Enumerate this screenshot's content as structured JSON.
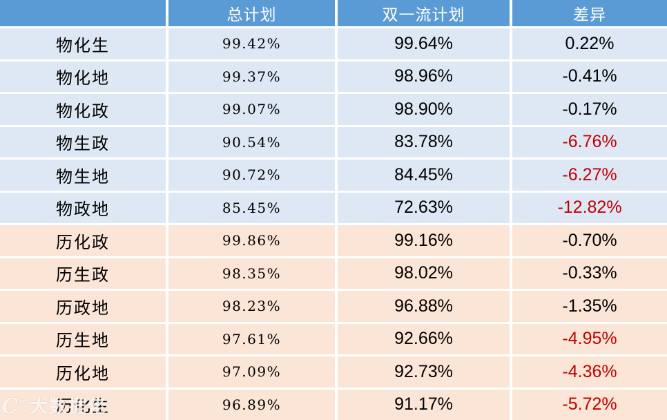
{
  "colors": {
    "header_bg": "#5B9BD5",
    "header_text": "#FFFFFF",
    "physics_row_bg": "#DEE8F5",
    "history_row_bg": "#FBE5D6",
    "normal_text": "#000000",
    "negative_highlight": "#C00000"
  },
  "table": {
    "headers": [
      "",
      "总计划",
      "双一流计划",
      "差异"
    ],
    "rows": [
      {
        "label": "物化生",
        "total": "99.42%",
        "first_class": "99.64%",
        "diff": "0.22%",
        "group": "physics",
        "diff_highlight": false
      },
      {
        "label": "物化地",
        "total": "99.37%",
        "first_class": "98.96%",
        "diff": "-0.41%",
        "group": "physics",
        "diff_highlight": false
      },
      {
        "label": "物化政",
        "total": "99.07%",
        "first_class": "98.90%",
        "diff": "-0.17%",
        "group": "physics",
        "diff_highlight": false
      },
      {
        "label": "物生政",
        "total": "90.54%",
        "first_class": "83.78%",
        "diff": "-6.76%",
        "group": "physics",
        "diff_highlight": true
      },
      {
        "label": "物生地",
        "total": "90.72%",
        "first_class": "84.45%",
        "diff": "-6.27%",
        "group": "physics",
        "diff_highlight": true
      },
      {
        "label": "物政地",
        "total": "85.45%",
        "first_class": "72.63%",
        "diff": "-12.82%",
        "group": "physics",
        "diff_highlight": true
      },
      {
        "label": "历化政",
        "total": "99.86%",
        "first_class": "99.16%",
        "diff": "-0.70%",
        "group": "history",
        "diff_highlight": false
      },
      {
        "label": "历生政",
        "total": "98.35%",
        "first_class": "98.02%",
        "diff": "-0.33%",
        "group": "history",
        "diff_highlight": false
      },
      {
        "label": "历政地",
        "total": "98.23%",
        "first_class": "96.88%",
        "diff": "-1.35%",
        "group": "history",
        "diff_highlight": false
      },
      {
        "label": "历生地",
        "total": "97.61%",
        "first_class": "92.66%",
        "diff": "-4.95%",
        "group": "history",
        "diff_highlight": true
      },
      {
        "label": "历化地",
        "total": "97.09%",
        "first_class": "92.73%",
        "diff": "-4.36%",
        "group": "history",
        "diff_highlight": true
      },
      {
        "label": "历化生",
        "total": "96.89%",
        "first_class": "91.17%",
        "diff": "-5.72%",
        "group": "history",
        "diff_highlight": true
      }
    ]
  },
  "chart_data": {
    "type": "table",
    "title": "",
    "categories": [
      "物化生",
      "物化地",
      "物化政",
      "物生政",
      "物生地",
      "物政地",
      "历化政",
      "历生政",
      "历政地",
      "历生地",
      "历化地",
      "历化生"
    ],
    "series": [
      {
        "name": "总计划",
        "values": [
          99.42,
          99.37,
          99.07,
          90.54,
          90.72,
          85.45,
          99.86,
          98.35,
          98.23,
          97.61,
          97.09,
          96.89
        ]
      },
      {
        "name": "双一流计划",
        "values": [
          99.64,
          98.96,
          98.9,
          83.78,
          84.45,
          72.63,
          99.16,
          98.02,
          96.88,
          92.66,
          92.73,
          91.17
        ]
      },
      {
        "name": "差异",
        "values": [
          0.22,
          -0.41,
          -0.17,
          -6.76,
          -6.27,
          -12.82,
          -0.7,
          -0.33,
          -1.35,
          -4.95,
          -4.36,
          -5.72
        ]
      }
    ],
    "legend_position": "none",
    "grid": false
  },
  "watermark": {
    "icon": "C∞",
    "text": "大数据佬"
  }
}
